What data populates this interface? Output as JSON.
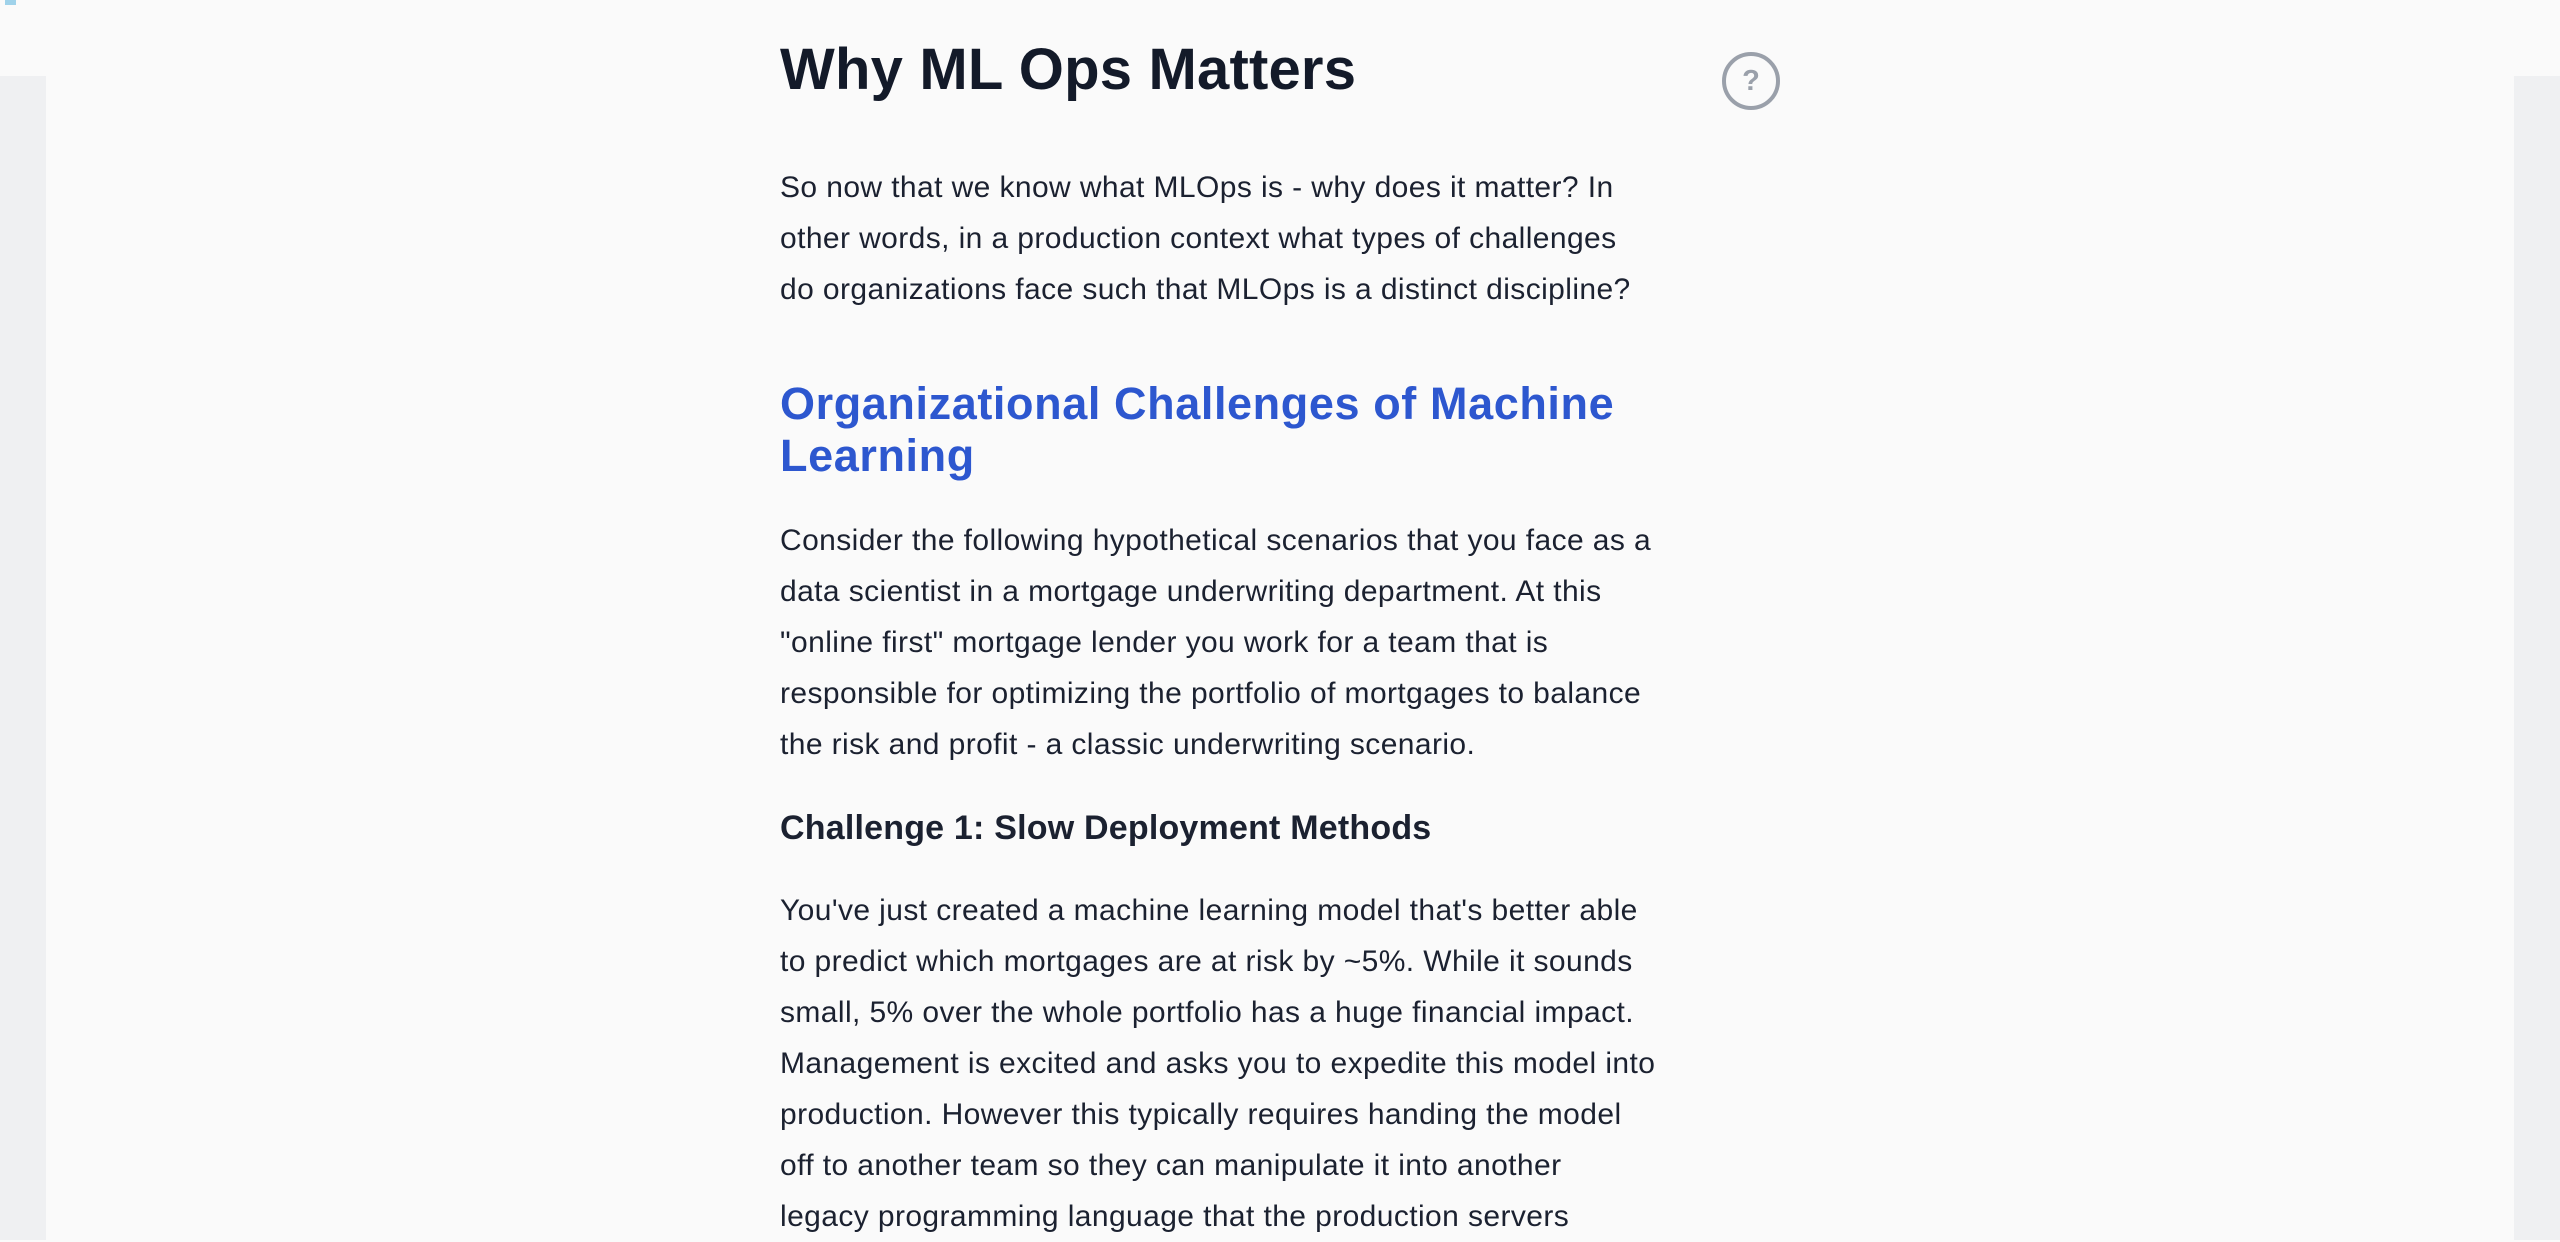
{
  "page": {
    "background_color": "#fafafa",
    "side_panel_color": "#eff0f2",
    "corner_chip_color": "#9fd2ea",
    "text_color": "#1b2130",
    "heading_accent_color": "#2d57cf",
    "help_icon_color": "#9aa0aa"
  },
  "article": {
    "title": "Why ML Ops Matters",
    "help_icon_glyph": "?",
    "intro_lines": [
      "So now that we know what MLOps is - why does it matter? In",
      "other words, in a production context what types of challenges",
      "do organizations face such that MLOps is a distinct discipline?"
    ],
    "section_heading_lines": [
      "Organizational Challenges of Machine",
      "Learning"
    ],
    "scenario_lines": [
      "Consider the following hypothetical scenarios that you face as a",
      "data scientist in a mortgage underwriting department. At this",
      "\"online first\" mortgage lender you work for a team that is",
      "responsible for optimizing the portfolio of mortgages to balance",
      "the risk and profit - a classic underwriting scenario."
    ],
    "challenge_heading": "Challenge 1: Slow Deployment Methods",
    "challenge_lines": [
      "You've just created a machine learning model that's better able",
      "to predict which mortgages are at risk by ~5%. While it sounds",
      "small, 5% over the whole portfolio has a huge financial impact.",
      "Management is excited and asks you to expedite this model into",
      "production. However this typically requires handing the model",
      "off to another team so they can manipulate it into another",
      "legacy programming language that the production servers"
    ]
  }
}
